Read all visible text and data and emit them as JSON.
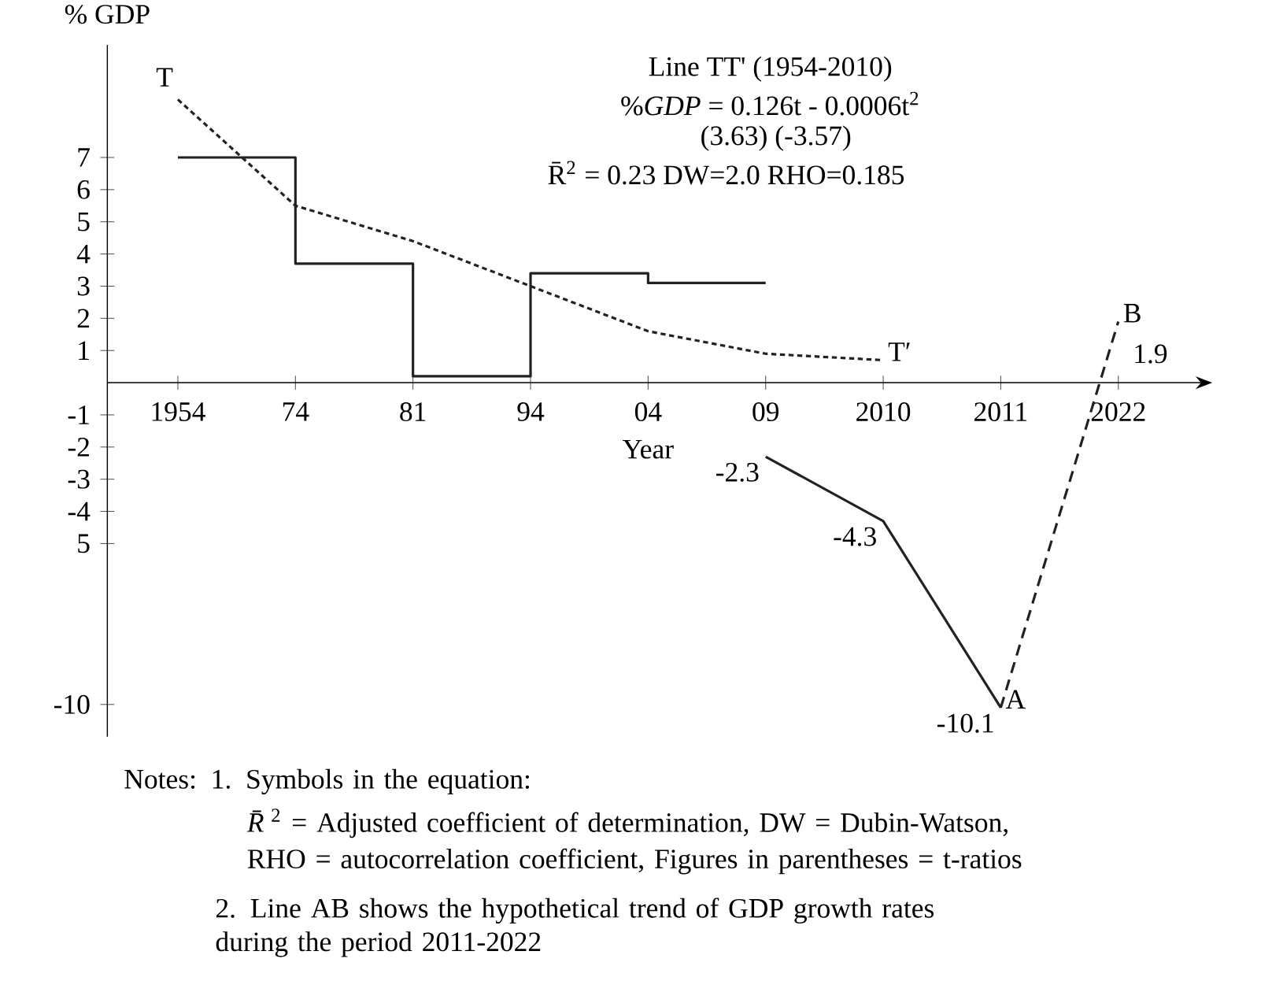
{
  "chart_data": {
    "type": "step",
    "xlabel": "Year",
    "ylabel": "% GDP",
    "categories": [
      "1954",
      "74",
      "81",
      "94",
      "04",
      "09",
      "2010",
      "2011",
      "2022"
    ],
    "series": [
      {
        "color": "#222222",
        "line_style": "solid",
        "values": [
          7,
          3.7,
          0.2,
          3.4,
          3.1,
          3.1,
          null,
          null,
          null
        ]
      },
      {
        "type": "line",
        "color": "#222222",
        "line_style": "dotted",
        "values": [
          8.8,
          5.5,
          4.4,
          3.0,
          1.6,
          0.9,
          0.7,
          null,
          null
        ]
      },
      {
        "type": "line",
        "color": "#222222",
        "line_style": "solid",
        "values": [
          null,
          null,
          null,
          null,
          null,
          -2.3,
          -4.3,
          -10.1,
          null
        ],
        "value_labels": [
          null,
          null,
          null,
          null,
          null,
          "-2.3",
          "-4.3",
          "-10.1",
          null
        ]
      },
      {
        "type": "line",
        "color": "#222222",
        "line_style": "dashed",
        "values": [
          null,
          null,
          null,
          null,
          null,
          null,
          null,
          -10.1,
          1.9
        ],
        "value_labels": [
          null,
          null,
          null,
          null,
          null,
          null,
          null,
          null,
          "1.9"
        ]
      }
    ],
    "ylim": [
      -11,
      10.5
    ],
    "yticks": [
      7,
      6,
      5,
      4,
      3,
      2,
      1,
      -1,
      -2,
      -3,
      -4,
      {
        "value": -5,
        "label": "5"
      },
      -10
    ],
    "grid": false,
    "marker": "none",
    "annotations": [
      {
        "text": "T",
        "x": "1954",
        "y": 8.8
      },
      {
        "text": "T′",
        "x": "2010",
        "y": 0.7
      },
      {
        "text": "A",
        "x": "2011",
        "y": -10.1
      },
      {
        "text": "B",
        "x": "2022",
        "y": 1.9
      },
      "Line TT' (1954-2010)",
      "%*GDP* = 0.126t -  0.0006t$^{2}$",
      "(3.63)     (-3.57)",
      "R̄$^{2}$ = 0.23  DW=2.0  RHO=0.185",
      "Notes: 1. Symbols in the equation:",
      "*R̄*$^{2}$ = Adjusted coefficient of determination, DW = Dubin-Watson,",
      "RHO = autocorrelation coefficient,  Figures in parentheses = t-ratios",
      "2. Line AB shows the hypothetical trend of GDP growth rates during the period 2011-2022"
    ]
  }
}
